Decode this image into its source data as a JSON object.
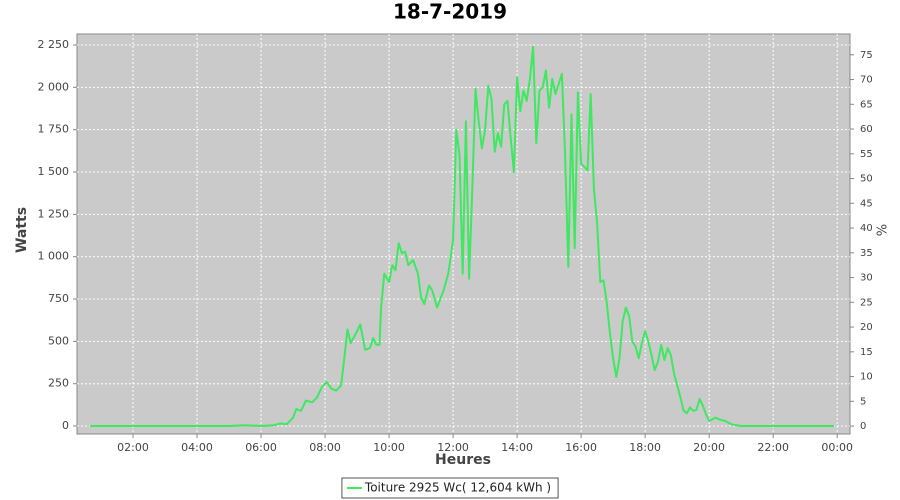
{
  "chart_data": {
    "type": "line",
    "title": "18-7-2019",
    "xlabel": "Heures",
    "ylabel": "Watts",
    "y2label": "%",
    "x": [
      0.66,
      1,
      2,
      3,
      4,
      5,
      5.5,
      6,
      6.4,
      6.6,
      6.8,
      7.0,
      7.1,
      7.25,
      7.4,
      7.6,
      7.75,
      7.9,
      8.05,
      8.2,
      8.35,
      8.5,
      8.6,
      8.7,
      8.8,
      9.0,
      9.1,
      9.25,
      9.4,
      9.5,
      9.6,
      9.7,
      9.75,
      9.85,
      10.0,
      10.1,
      10.2,
      10.3,
      10.4,
      10.5,
      10.6,
      10.75,
      10.9,
      11.0,
      11.1,
      11.25,
      11.35,
      11.5,
      11.7,
      11.85,
      12.0,
      12.1,
      12.2,
      12.3,
      12.4,
      12.5,
      12.6,
      12.7,
      12.8,
      12.9,
      13.0,
      13.1,
      13.2,
      13.3,
      13.4,
      13.5,
      13.6,
      13.7,
      13.8,
      13.9,
      14.0,
      14.1,
      14.2,
      14.3,
      14.4,
      14.5,
      14.6,
      14.7,
      14.8,
      14.9,
      15.0,
      15.1,
      15.2,
      15.3,
      15.4,
      15.5,
      15.6,
      15.7,
      15.8,
      15.9,
      16.0,
      16.2,
      16.3,
      16.4,
      16.5,
      16.6,
      16.7,
      16.8,
      16.9,
      17.0,
      17.1,
      17.2,
      17.3,
      17.4,
      17.5,
      17.6,
      17.7,
      17.8,
      17.9,
      18.0,
      18.1,
      18.2,
      18.3,
      18.4,
      18.5,
      18.6,
      18.7,
      18.8,
      18.9,
      19.0,
      19.1,
      19.2,
      19.3,
      19.4,
      19.5,
      19.6,
      19.7,
      19.8,
      19.9,
      20.0,
      20.2,
      20.3,
      20.5,
      20.7,
      21.0,
      22,
      23,
      23.9
    ],
    "series": [
      {
        "name": "Toiture 2925 Wc( 12,604 kWh )",
        "color": "#3ee860",
        "values": [
          0,
          0,
          0,
          0,
          0,
          0,
          5,
          0,
          5,
          15,
          10,
          50,
          100,
          90,
          150,
          140,
          170,
          230,
          260,
          220,
          210,
          240,
          400,
          570,
          490,
          560,
          600,
          450,
          460,
          520,
          480,
          480,
          700,
          900,
          850,
          950,
          920,
          1080,
          1020,
          1030,
          950,
          980,
          900,
          760,
          720,
          830,
          800,
          700,
          800,
          900,
          1100,
          1750,
          1600,
          900,
          1800,
          870,
          1400,
          1990,
          1800,
          1640,
          1750,
          2010,
          1930,
          1620,
          1730,
          1650,
          1900,
          1920,
          1700,
          1500,
          2060,
          1860,
          1980,
          1920,
          2050,
          2240,
          1670,
          1980,
          2000,
          2100,
          1880,
          2050,
          1960,
          2020,
          2080,
          1600,
          940,
          1840,
          1050,
          1970,
          1550,
          1510,
          1960,
          1400,
          1200,
          850,
          860,
          730,
          550,
          400,
          290,
          400,
          620,
          700,
          650,
          500,
          470,
          400,
          490,
          560,
          500,
          420,
          330,
          380,
          480,
          390,
          460,
          420,
          310,
          240,
          170,
          90,
          75,
          110,
          90,
          95,
          160,
          120,
          70,
          30,
          50,
          40,
          30,
          10,
          0,
          0,
          0,
          0
        ]
      }
    ],
    "xlim": [
      0.25,
      24.4
    ],
    "xticks": [
      {
        "value": 2,
        "label": "02:00"
      },
      {
        "value": 4,
        "label": "04:00"
      },
      {
        "value": 6,
        "label": "06:00"
      },
      {
        "value": 8,
        "label": "08:00"
      },
      {
        "value": 10,
        "label": "10:00"
      },
      {
        "value": 12,
        "label": "12:00"
      },
      {
        "value": 14,
        "label": "14:00"
      },
      {
        "value": 16,
        "label": "16:00"
      },
      {
        "value": 18,
        "label": "18:00"
      },
      {
        "value": 20,
        "label": "20:00"
      },
      {
        "value": 22,
        "label": "22:00"
      },
      {
        "value": 24,
        "label": "00:00"
      }
    ],
    "ylim": [
      -47,
      2315
    ],
    "yticks": [
      0,
      250,
      500,
      750,
      {
        "value": 1000,
        "label": "1 000"
      },
      {
        "value": 1250,
        "label": "1 250"
      },
      {
        "value": 1500,
        "label": "1 500"
      },
      {
        "value": 1750,
        "label": "1 750"
      },
      {
        "value": 2000,
        "label": "2 000"
      },
      {
        "value": 2250,
        "label": "2 250"
      }
    ],
    "y2lim": [
      -1.6,
      79.2
    ],
    "y2ticks": [
      0,
      5,
      10,
      15,
      20,
      25,
      30,
      35,
      40,
      45,
      50,
      55,
      60,
      65,
      70,
      75
    ],
    "grid": true,
    "legend": "bottom"
  }
}
